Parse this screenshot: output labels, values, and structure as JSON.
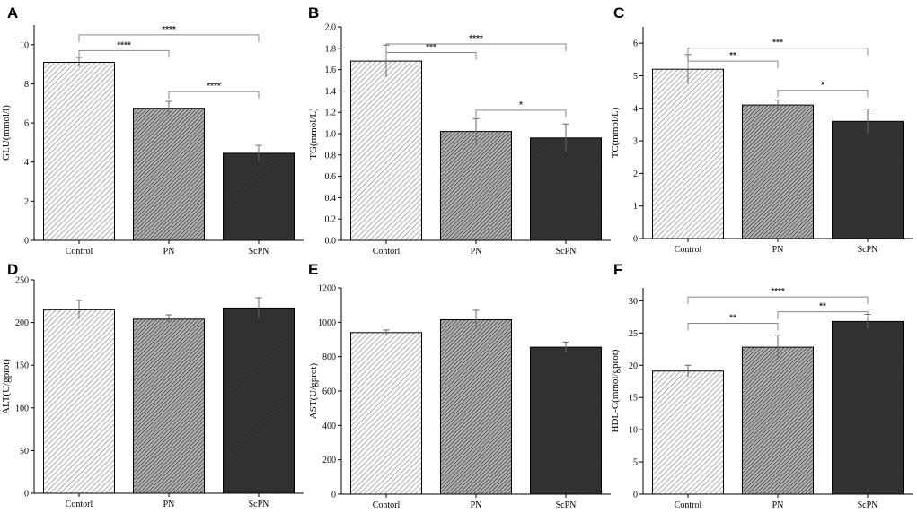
{
  "colors": {
    "control_stripe": "#9a9a9a",
    "control_bg": "#ffffff",
    "pn_stripe": "#3c3c3c",
    "pn_bg": "#b4b4b4",
    "scpn_fill": "#333333",
    "bracket": "#888888",
    "error": "#666666"
  },
  "chart_data": [
    {
      "panel": "A",
      "type": "bar",
      "categories": [
        "Control",
        "PN",
        "ScPN"
      ],
      "values": [
        9.1,
        6.75,
        4.45
      ],
      "errors": [
        0.25,
        0.35,
        0.4
      ],
      "ylabel": "GLU(mmol/l)",
      "ylim": [
        0,
        11
      ],
      "yticks": [
        0,
        2,
        4,
        6,
        8,
        10
      ],
      "yticklabels": [
        "0",
        "2",
        "4",
        "6",
        "8",
        "10"
      ],
      "significance": [
        {
          "from": 0,
          "to": 1,
          "label": "****",
          "y": 9.7
        },
        {
          "from": 0,
          "to": 2,
          "label": "****",
          "y": 10.5
        },
        {
          "from": 1,
          "to": 2,
          "label": "****",
          "y": 7.6
        }
      ]
    },
    {
      "panel": "B",
      "type": "bar",
      "categories": [
        "Contorl",
        "PN",
        "ScPN"
      ],
      "values": [
        1.68,
        1.02,
        0.96
      ],
      "errors": [
        0.15,
        0.12,
        0.13
      ],
      "ylabel": "TG(mmol/L)",
      "ylim": [
        0,
        2.0
      ],
      "yticks": [
        0,
        0.2,
        0.4,
        0.6,
        0.8,
        1.0,
        1.2,
        1.4,
        1.6,
        1.8,
        2.0
      ],
      "yticklabels": [
        "0.0",
        "0.2",
        "0.4",
        "0.6",
        "0.8",
        "1.0",
        "1.2",
        "1.4",
        "1.6",
        "1.8",
        "2.0"
      ],
      "significance": [
        {
          "from": 0,
          "to": 1,
          "label": "***",
          "y": 1.76
        },
        {
          "from": 0,
          "to": 2,
          "label": "****",
          "y": 1.84
        },
        {
          "from": 1,
          "to": 2,
          "label": "*",
          "y": 1.22
        }
      ]
    },
    {
      "panel": "C",
      "type": "bar",
      "categories": [
        "Control",
        "PN",
        "ScPN"
      ],
      "values": [
        5.2,
        4.1,
        3.6
      ],
      "errors": [
        0.45,
        0.15,
        0.38
      ],
      "ylabel": "TC(mmol/L)",
      "ylim": [
        0,
        6.5
      ],
      "yticks": [
        0,
        1,
        2,
        3,
        4,
        5,
        6
      ],
      "yticklabels": [
        "0",
        "1",
        "2",
        "3",
        "4",
        "5",
        "6"
      ],
      "significance": [
        {
          "from": 0,
          "to": 1,
          "label": "**",
          "y": 5.45
        },
        {
          "from": 0,
          "to": 2,
          "label": "***",
          "y": 5.85
        },
        {
          "from": 1,
          "to": 2,
          "label": "*",
          "y": 4.55
        }
      ]
    },
    {
      "panel": "D",
      "type": "bar",
      "categories": [
        "Contorl",
        "PN",
        "ScPN"
      ],
      "values": [
        215,
        204,
        217
      ],
      "errors": [
        11,
        5,
        12
      ],
      "ylabel": "ALT(U/gprot)",
      "ylim": [
        0,
        250
      ],
      "yticks": [
        0,
        50,
        100,
        150,
        200,
        250
      ],
      "yticklabels": [
        "0",
        "50",
        "100",
        "150",
        "200",
        "250"
      ],
      "significance": []
    },
    {
      "panel": "E",
      "type": "bar",
      "categories": [
        "Contorl",
        "PN",
        "ScPN"
      ],
      "values": [
        940,
        1015,
        855
      ],
      "errors": [
        15,
        55,
        30
      ],
      "ylabel": "AST(U/gprot)",
      "ylim": [
        0,
        1200
      ],
      "yticks": [
        0,
        200,
        400,
        600,
        800,
        1000,
        1200
      ],
      "yticklabels": [
        "0",
        "200",
        "400",
        "600",
        "800",
        "1000",
        "1200"
      ],
      "significance": []
    },
    {
      "panel": "F",
      "type": "bar",
      "categories": [
        "Control",
        "PN",
        "ScPN"
      ],
      "values": [
        19.1,
        22.8,
        26.8
      ],
      "errors": [
        0.9,
        1.9,
        1.1
      ],
      "ylabel": "HDL-C(mmol/gprot)",
      "ylim": [
        0,
        32
      ],
      "yticks": [
        0,
        5,
        10,
        15,
        20,
        25,
        30
      ],
      "yticklabels": [
        "0",
        "5",
        "10",
        "15",
        "20",
        "25",
        "30"
      ],
      "significance": [
        {
          "from": 0,
          "to": 1,
          "label": "**",
          "y": 26.5
        },
        {
          "from": 0,
          "to": 2,
          "label": "****",
          "y": 30.6
        },
        {
          "from": 1,
          "to": 2,
          "label": "**",
          "y": 28.3
        }
      ]
    }
  ]
}
